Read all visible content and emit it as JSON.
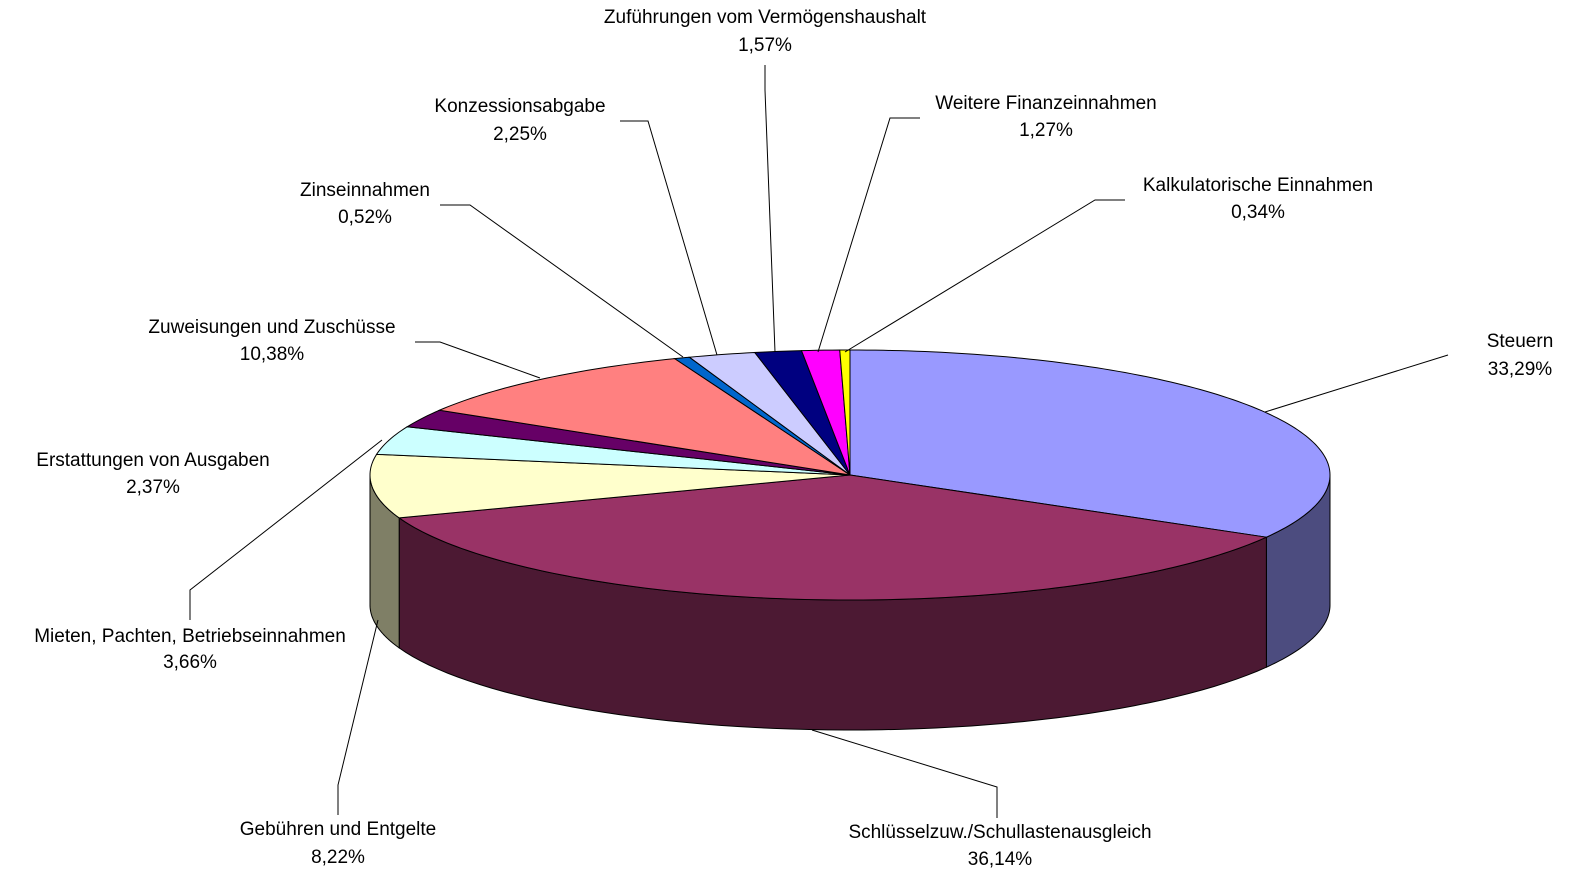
{
  "chart_data": {
    "type": "pie3d",
    "categories": [
      "Steuern",
      "Schlüsselzuw./Schullastenausgleich",
      "Gebühren und Entgelte",
      "Mieten, Pachten, Betriebseinnahmen",
      "Erstattungen von Ausgaben",
      "Zuweisungen und Zuschüsse",
      "Zinseinnahmen",
      "Konzessionsabgabe",
      "Zuführungen vom Vermögenshaushalt",
      "Weitere Finanzeinnahmen",
      "Kalkulatorische Einnahmen"
    ],
    "values": [
      33.29,
      36.14,
      8.22,
      3.66,
      2.37,
      10.38,
      0.52,
      2.25,
      1.57,
      1.27,
      0.34
    ],
    "value_labels": [
      "33,29%",
      "36,14%",
      "8,22%",
      "3,66%",
      "2,37%",
      "10,38%",
      "0,52%",
      "2,25%",
      "1,57%",
      "1,27%",
      "0,34%"
    ],
    "colors": [
      "#9999ff",
      "#993366",
      "#ffffcc",
      "#ccffff",
      "#660066",
      "#ff8080",
      "#0066cc",
      "#ccccff",
      "#000080",
      "#ff00ff",
      "#ffff00"
    ]
  }
}
